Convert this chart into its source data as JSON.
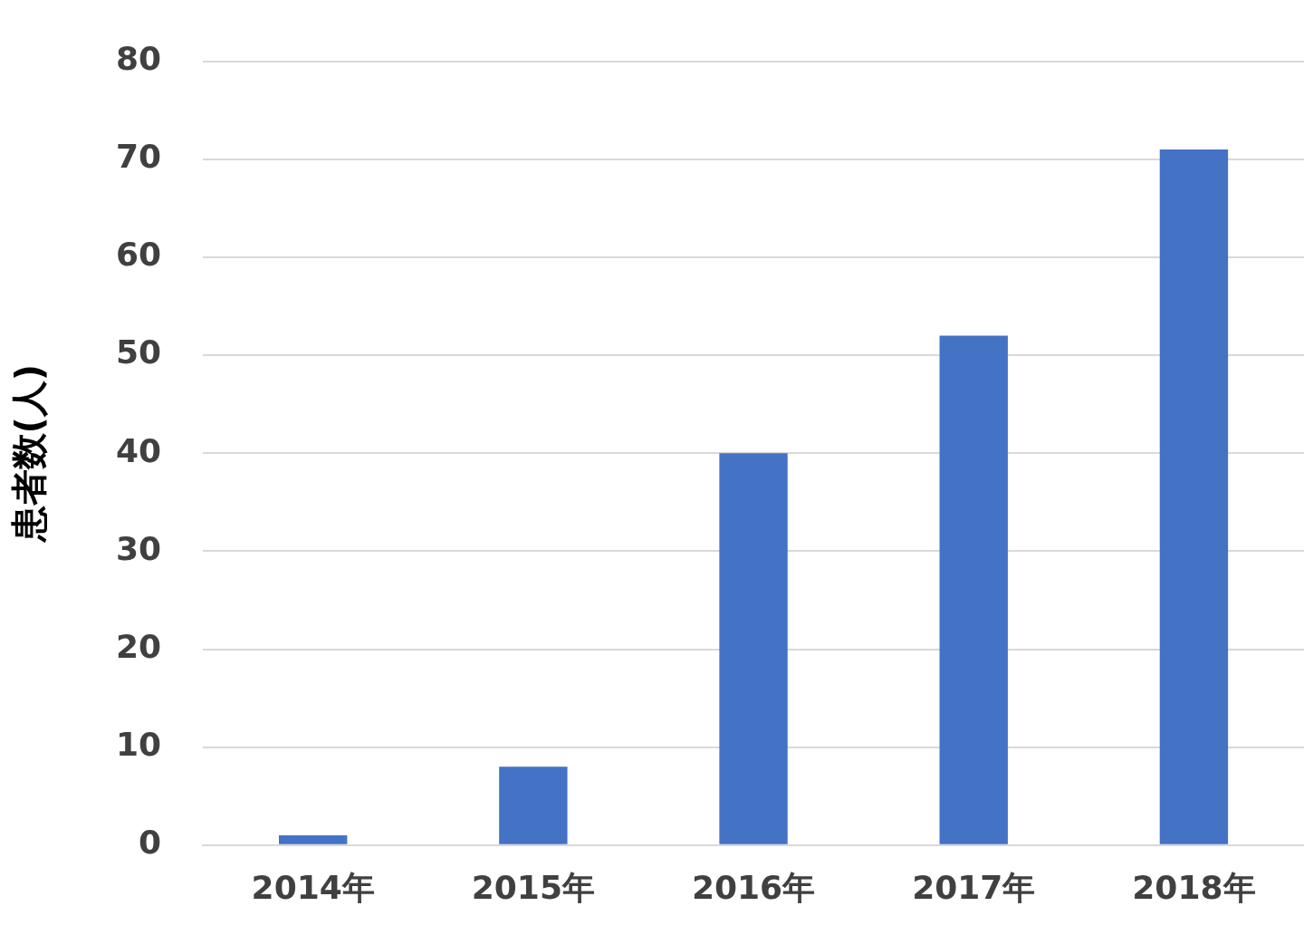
{
  "chart_data": {
    "type": "bar",
    "ylabel": "患者数(人)",
    "categories": [
      "2014年",
      "2015年",
      "2016年",
      "2017年",
      "2018年"
    ],
    "values": [
      1,
      8,
      40,
      52,
      71
    ],
    "color": "#4472c4",
    "ylim": [
      0,
      80
    ],
    "yticks": [
      0,
      10,
      20,
      30,
      40,
      50,
      60,
      70,
      80
    ],
    "grid": "y"
  }
}
